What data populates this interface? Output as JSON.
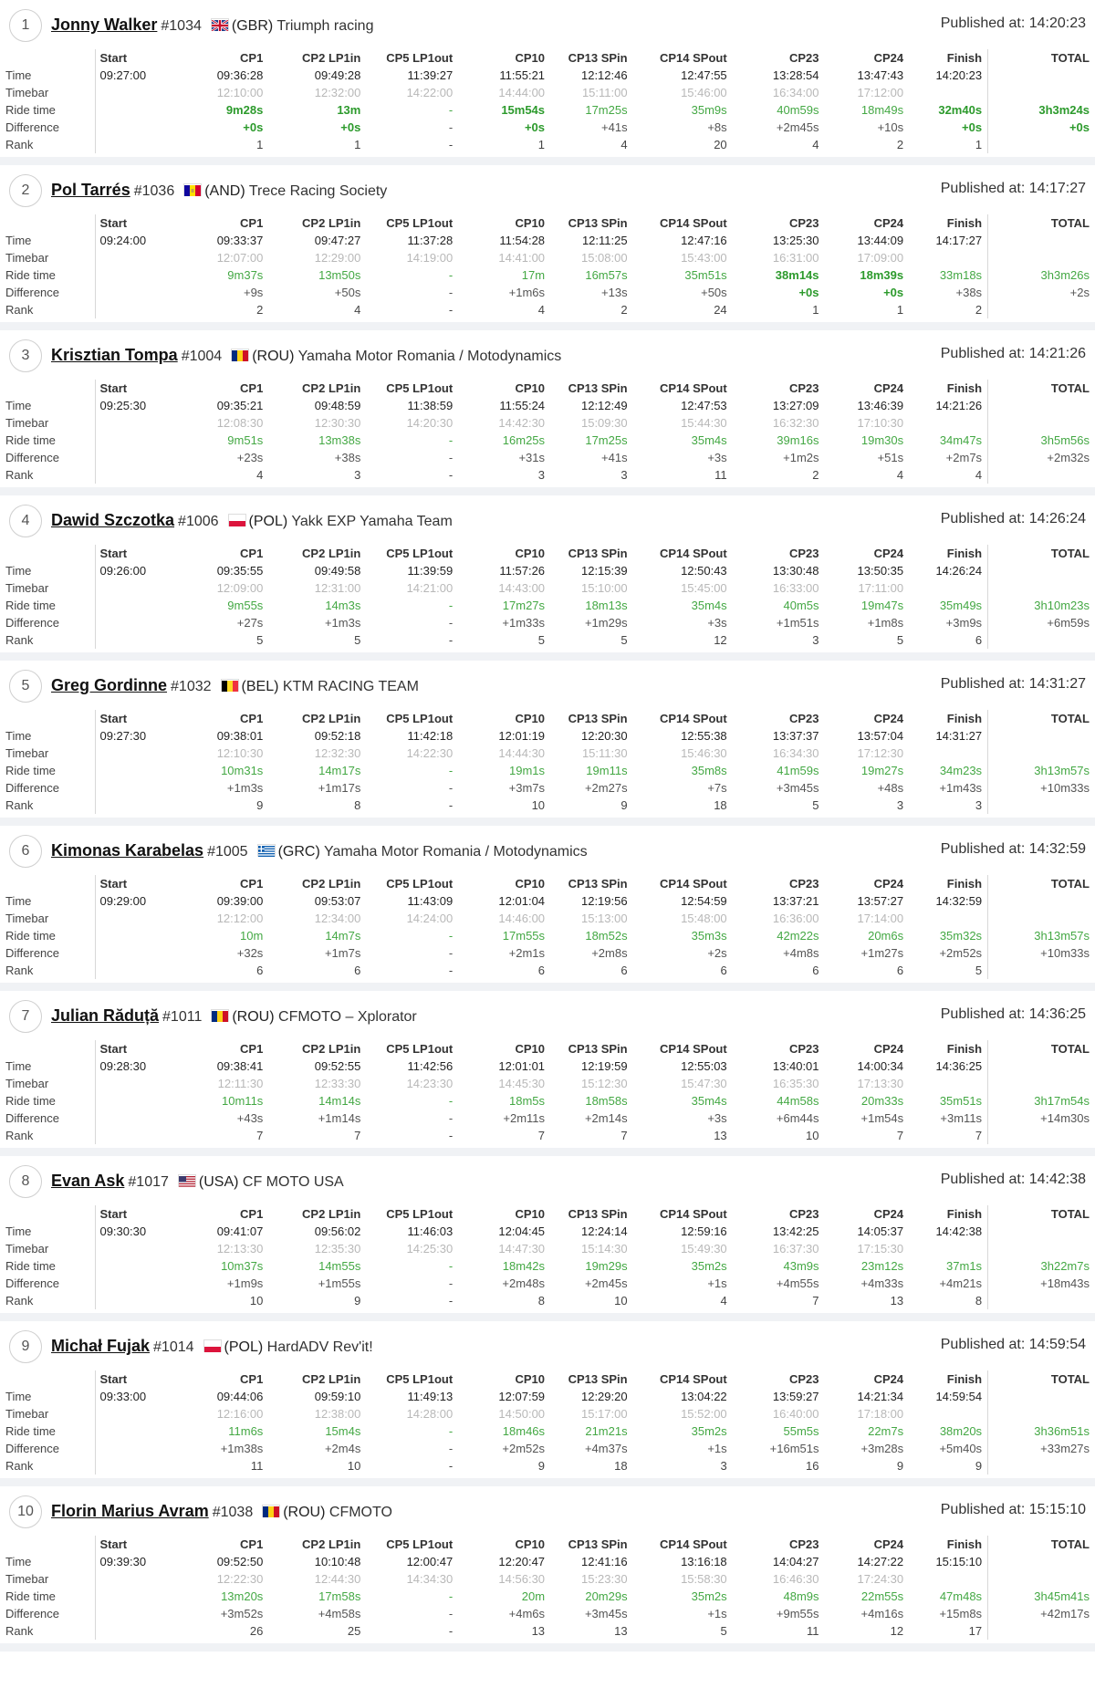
{
  "columns": [
    "Start",
    "CP1",
    "CP2 LP1in",
    "CP5 LP1out",
    "CP10",
    "CP13 SPin",
    "CP14 SPout",
    "CP23",
    "CP24",
    "Finish",
    "TOTAL"
  ],
  "row_labels": [
    "Time",
    "Timebar",
    "Ride time",
    "Difference",
    "Rank"
  ],
  "published_prefix": "Published at:",
  "colors": {
    "ride_time": "#44a844",
    "timebar": "#b8b8b8",
    "best": "#2c9a2c"
  },
  "riders": [
    {
      "pos": "1",
      "name": "Jonny Walker",
      "num": "#1034",
      "country": "(GBR)",
      "team": "Triumph racing",
      "published": "14:20:23",
      "flag": "gbr",
      "time": [
        "09:27:00",
        "09:36:28",
        "09:49:28",
        "11:39:27",
        "11:55:21",
        "12:12:46",
        "12:47:55",
        "13:28:54",
        "13:47:43",
        "14:20:23",
        ""
      ],
      "timebar": [
        "",
        "12:10:00",
        "12:32:00",
        "14:22:00",
        "14:44:00",
        "15:11:00",
        "15:46:00",
        "16:34:00",
        "17:12:00",
        "",
        ""
      ],
      "ride": [
        "",
        "9m28s",
        "13m",
        "-",
        "15m54s",
        "17m25s",
        "35m9s",
        "40m59s",
        "18m49s",
        "32m40s",
        "3h3m24s"
      ],
      "diff": [
        "",
        "+0s",
        "+0s",
        "-",
        "+0s",
        "+41s",
        "+8s",
        "+2m45s",
        "+10s",
        "+0s",
        "+0s"
      ],
      "rank": [
        "",
        "1",
        "1",
        "-",
        "1",
        "4",
        "20",
        "4",
        "2",
        "1",
        ""
      ],
      "best": [
        1,
        2,
        4,
        9,
        10
      ]
    },
    {
      "pos": "2",
      "name": "Pol Tarrés",
      "num": "#1036",
      "country": "(AND)",
      "team": "Trece Racing Society",
      "published": "14:17:27",
      "flag": "and",
      "time": [
        "09:24:00",
        "09:33:37",
        "09:47:27",
        "11:37:28",
        "11:54:28",
        "12:11:25",
        "12:47:16",
        "13:25:30",
        "13:44:09",
        "14:17:27",
        ""
      ],
      "timebar": [
        "",
        "12:07:00",
        "12:29:00",
        "14:19:00",
        "14:41:00",
        "15:08:00",
        "15:43:00",
        "16:31:00",
        "17:09:00",
        "",
        ""
      ],
      "ride": [
        "",
        "9m37s",
        "13m50s",
        "-",
        "17m",
        "16m57s",
        "35m51s",
        "38m14s",
        "18m39s",
        "33m18s",
        "3h3m26s"
      ],
      "diff": [
        "",
        "+9s",
        "+50s",
        "-",
        "+1m6s",
        "+13s",
        "+50s",
        "+0s",
        "+0s",
        "+38s",
        "+2s"
      ],
      "rank": [
        "",
        "2",
        "4",
        "-",
        "4",
        "2",
        "24",
        "1",
        "1",
        "2",
        ""
      ],
      "best": [
        7,
        8
      ]
    },
    {
      "pos": "3",
      "name": "Krisztian Tompa",
      "num": "#1004",
      "country": "(ROU)",
      "team": "Yamaha Motor Romania / Motodynamics",
      "published": "14:21:26",
      "flag": "rou",
      "time": [
        "09:25:30",
        "09:35:21",
        "09:48:59",
        "11:38:59",
        "11:55:24",
        "12:12:49",
        "12:47:53",
        "13:27:09",
        "13:46:39",
        "14:21:26",
        ""
      ],
      "timebar": [
        "",
        "12:08:30",
        "12:30:30",
        "14:20:30",
        "14:42:30",
        "15:09:30",
        "15:44:30",
        "16:32:30",
        "17:10:30",
        "",
        ""
      ],
      "ride": [
        "",
        "9m51s",
        "13m38s",
        "-",
        "16m25s",
        "17m25s",
        "35m4s",
        "39m16s",
        "19m30s",
        "34m47s",
        "3h5m56s"
      ],
      "diff": [
        "",
        "+23s",
        "+38s",
        "-",
        "+31s",
        "+41s",
        "+3s",
        "+1m2s",
        "+51s",
        "+2m7s",
        "+2m32s"
      ],
      "rank": [
        "",
        "4",
        "3",
        "-",
        "3",
        "3",
        "11",
        "2",
        "4",
        "4",
        ""
      ],
      "best": []
    },
    {
      "pos": "4",
      "name": "Dawid Szczotka",
      "num": "#1006",
      "country": "(POL)",
      "team": "Yakk EXP Yamaha Team",
      "published": "14:26:24",
      "flag": "pol",
      "time": [
        "09:26:00",
        "09:35:55",
        "09:49:58",
        "11:39:59",
        "11:57:26",
        "12:15:39",
        "12:50:43",
        "13:30:48",
        "13:50:35",
        "14:26:24",
        ""
      ],
      "timebar": [
        "",
        "12:09:00",
        "12:31:00",
        "14:21:00",
        "14:43:00",
        "15:10:00",
        "15:45:00",
        "16:33:00",
        "17:11:00",
        "",
        ""
      ],
      "ride": [
        "",
        "9m55s",
        "14m3s",
        "-",
        "17m27s",
        "18m13s",
        "35m4s",
        "40m5s",
        "19m47s",
        "35m49s",
        "3h10m23s"
      ],
      "diff": [
        "",
        "+27s",
        "+1m3s",
        "-",
        "+1m33s",
        "+1m29s",
        "+3s",
        "+1m51s",
        "+1m8s",
        "+3m9s",
        "+6m59s"
      ],
      "rank": [
        "",
        "5",
        "5",
        "-",
        "5",
        "5",
        "12",
        "3",
        "5",
        "6",
        ""
      ],
      "best": []
    },
    {
      "pos": "5",
      "name": "Greg Gordinne",
      "num": "#1032",
      "country": "(BEL)",
      "team": "KTM RACING TEAM",
      "published": "14:31:27",
      "flag": "bel",
      "time": [
        "09:27:30",
        "09:38:01",
        "09:52:18",
        "11:42:18",
        "12:01:19",
        "12:20:30",
        "12:55:38",
        "13:37:37",
        "13:57:04",
        "14:31:27",
        ""
      ],
      "timebar": [
        "",
        "12:10:30",
        "12:32:30",
        "14:22:30",
        "14:44:30",
        "15:11:30",
        "15:46:30",
        "16:34:30",
        "17:12:30",
        "",
        ""
      ],
      "ride": [
        "",
        "10m31s",
        "14m17s",
        "-",
        "19m1s",
        "19m11s",
        "35m8s",
        "41m59s",
        "19m27s",
        "34m23s",
        "3h13m57s"
      ],
      "diff": [
        "",
        "+1m3s",
        "+1m17s",
        "-",
        "+3m7s",
        "+2m27s",
        "+7s",
        "+3m45s",
        "+48s",
        "+1m43s",
        "+10m33s"
      ],
      "rank": [
        "",
        "9",
        "8",
        "-",
        "10",
        "9",
        "18",
        "5",
        "3",
        "3",
        ""
      ],
      "best": []
    },
    {
      "pos": "6",
      "name": "Kimonas Karabelas",
      "num": "#1005",
      "country": "(GRC)",
      "team": "Yamaha Motor Romania / Motodynamics",
      "published": "14:32:59",
      "flag": "grc",
      "time": [
        "09:29:00",
        "09:39:00",
        "09:53:07",
        "11:43:09",
        "12:01:04",
        "12:19:56",
        "12:54:59",
        "13:37:21",
        "13:57:27",
        "14:32:59",
        ""
      ],
      "timebar": [
        "",
        "12:12:00",
        "12:34:00",
        "14:24:00",
        "14:46:00",
        "15:13:00",
        "15:48:00",
        "16:36:00",
        "17:14:00",
        "",
        ""
      ],
      "ride": [
        "",
        "10m",
        "14m7s",
        "-",
        "17m55s",
        "18m52s",
        "35m3s",
        "42m22s",
        "20m6s",
        "35m32s",
        "3h13m57s"
      ],
      "diff": [
        "",
        "+32s",
        "+1m7s",
        "-",
        "+2m1s",
        "+2m8s",
        "+2s",
        "+4m8s",
        "+1m27s",
        "+2m52s",
        "+10m33s"
      ],
      "rank": [
        "",
        "6",
        "6",
        "-",
        "6",
        "6",
        "6",
        "6",
        "6",
        "5",
        ""
      ],
      "best": []
    },
    {
      "pos": "7",
      "name": "Julian Răduță",
      "num": "#1011",
      "country": "(ROU)",
      "team": "CFMOTO – Xplorator",
      "published": "14:36:25",
      "flag": "rou",
      "time": [
        "09:28:30",
        "09:38:41",
        "09:52:55",
        "11:42:56",
        "12:01:01",
        "12:19:59",
        "12:55:03",
        "13:40:01",
        "14:00:34",
        "14:36:25",
        ""
      ],
      "timebar": [
        "",
        "12:11:30",
        "12:33:30",
        "14:23:30",
        "14:45:30",
        "15:12:30",
        "15:47:30",
        "16:35:30",
        "17:13:30",
        "",
        ""
      ],
      "ride": [
        "",
        "10m11s",
        "14m14s",
        "-",
        "18m5s",
        "18m58s",
        "35m4s",
        "44m58s",
        "20m33s",
        "35m51s",
        "3h17m54s"
      ],
      "diff": [
        "",
        "+43s",
        "+1m14s",
        "-",
        "+2m11s",
        "+2m14s",
        "+3s",
        "+6m44s",
        "+1m54s",
        "+3m11s",
        "+14m30s"
      ],
      "rank": [
        "",
        "7",
        "7",
        "-",
        "7",
        "7",
        "13",
        "10",
        "7",
        "7",
        ""
      ],
      "best": []
    },
    {
      "pos": "8",
      "name": "Evan Ask",
      "num": "#1017",
      "country": "(USA)",
      "team": "CF MOTO USA",
      "published": "14:42:38",
      "flag": "usa",
      "time": [
        "09:30:30",
        "09:41:07",
        "09:56:02",
        "11:46:03",
        "12:04:45",
        "12:24:14",
        "12:59:16",
        "13:42:25",
        "14:05:37",
        "14:42:38",
        ""
      ],
      "timebar": [
        "",
        "12:13:30",
        "12:35:30",
        "14:25:30",
        "14:47:30",
        "15:14:30",
        "15:49:30",
        "16:37:30",
        "17:15:30",
        "",
        ""
      ],
      "ride": [
        "",
        "10m37s",
        "14m55s",
        "-",
        "18m42s",
        "19m29s",
        "35m2s",
        "43m9s",
        "23m12s",
        "37m1s",
        "3h22m7s"
      ],
      "diff": [
        "",
        "+1m9s",
        "+1m55s",
        "-",
        "+2m48s",
        "+2m45s",
        "+1s",
        "+4m55s",
        "+4m33s",
        "+4m21s",
        "+18m43s"
      ],
      "rank": [
        "",
        "10",
        "9",
        "-",
        "8",
        "10",
        "4",
        "7",
        "13",
        "8",
        ""
      ],
      "best": []
    },
    {
      "pos": "9",
      "name": "Michał Fujak",
      "num": "#1014",
      "country": "(POL)",
      "team": "HardADV Rev'it!",
      "published": "14:59:54",
      "flag": "pol",
      "time": [
        "09:33:00",
        "09:44:06",
        "09:59:10",
        "11:49:13",
        "12:07:59",
        "12:29:20",
        "13:04:22",
        "13:59:27",
        "14:21:34",
        "14:59:54",
        ""
      ],
      "timebar": [
        "",
        "12:16:00",
        "12:38:00",
        "14:28:00",
        "14:50:00",
        "15:17:00",
        "15:52:00",
        "16:40:00",
        "17:18:00",
        "",
        ""
      ],
      "ride": [
        "",
        "11m6s",
        "15m4s",
        "-",
        "18m46s",
        "21m21s",
        "35m2s",
        "55m5s",
        "22m7s",
        "38m20s",
        "3h36m51s"
      ],
      "diff": [
        "",
        "+1m38s",
        "+2m4s",
        "-",
        "+2m52s",
        "+4m37s",
        "+1s",
        "+16m51s",
        "+3m28s",
        "+5m40s",
        "+33m27s"
      ],
      "rank": [
        "",
        "11",
        "10",
        "-",
        "9",
        "18",
        "3",
        "16",
        "9",
        "9",
        ""
      ],
      "best": []
    },
    {
      "pos": "10",
      "name": "Florin Marius Avram",
      "num": "#1038",
      "country": "(ROU)",
      "team": "CFMOTO",
      "published": "15:15:10",
      "flag": "rou",
      "time": [
        "09:39:30",
        "09:52:50",
        "10:10:48",
        "12:00:47",
        "12:20:47",
        "12:41:16",
        "13:16:18",
        "14:04:27",
        "14:27:22",
        "15:15:10",
        ""
      ],
      "timebar": [
        "",
        "12:22:30",
        "12:44:30",
        "14:34:30",
        "14:56:30",
        "15:23:30",
        "15:58:30",
        "16:46:30",
        "17:24:30",
        "",
        ""
      ],
      "ride": [
        "",
        "13m20s",
        "17m58s",
        "-",
        "20m",
        "20m29s",
        "35m2s",
        "48m9s",
        "22m55s",
        "47m48s",
        "3h45m41s"
      ],
      "diff": [
        "",
        "+3m52s",
        "+4m58s",
        "-",
        "+4m6s",
        "+3m45s",
        "+1s",
        "+9m55s",
        "+4m16s",
        "+15m8s",
        "+42m17s"
      ],
      "rank": [
        "",
        "26",
        "25",
        "-",
        "13",
        "13",
        "5",
        "11",
        "12",
        "17",
        ""
      ],
      "best": []
    }
  ]
}
